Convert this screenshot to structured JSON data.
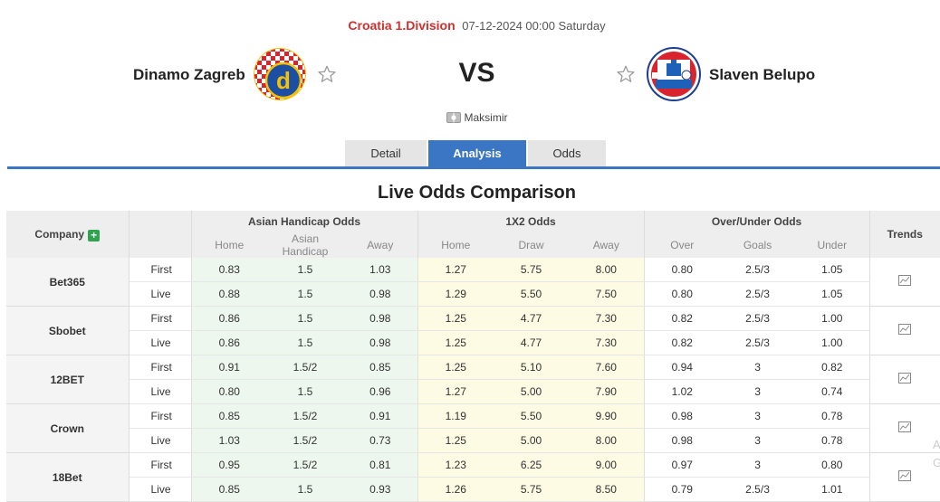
{
  "match": {
    "league": "Croatia 1.Division",
    "datetime": "07-12-2024 00:00 Saturday",
    "home_team": "Dinamo Zagreb",
    "away_team": "Slaven Belupo",
    "vs": "VS",
    "venue": "Maksimir"
  },
  "tabs": [
    {
      "label": "Detail",
      "active": false
    },
    {
      "label": "Analysis",
      "active": true
    },
    {
      "label": "Odds",
      "active": false
    }
  ],
  "section_title": "Live Odds Comparison",
  "table": {
    "headers": {
      "company": "Company",
      "asian": "Asian Handicap Odds",
      "x12": "1X2 Odds",
      "ou": "Over/Under Odds",
      "trends": "Trends"
    },
    "subheaders": {
      "asian": [
        "Home",
        "Asian Handicap",
        "Away"
      ],
      "x12": [
        "Home",
        "Draw",
        "Away"
      ],
      "ou": [
        "Over",
        "Goals",
        "Under"
      ]
    },
    "companies": [
      {
        "name": "Bet365",
        "rows": [
          {
            "type": "First",
            "ah": [
              "0.83",
              "1.5",
              "1.03"
            ],
            "x12": [
              "1.27",
              "5.75",
              "8.00"
            ],
            "ou": [
              "0.80",
              "2.5/3",
              "1.05"
            ]
          },
          {
            "type": "Live",
            "ah": [
              "0.88",
              "1.5",
              "0.98"
            ],
            "x12": [
              "1.29",
              "5.50",
              "7.50"
            ],
            "ou": [
              "0.80",
              "2.5/3",
              "1.05"
            ]
          }
        ]
      },
      {
        "name": "Sbobet",
        "rows": [
          {
            "type": "First",
            "ah": [
              "0.86",
              "1.5",
              "0.98"
            ],
            "x12": [
              "1.25",
              "4.77",
              "7.30"
            ],
            "ou": [
              "0.82",
              "2.5/3",
              "1.00"
            ]
          },
          {
            "type": "Live",
            "ah": [
              "0.86",
              "1.5",
              "0.98"
            ],
            "x12": [
              "1.25",
              "4.77",
              "7.30"
            ],
            "ou": [
              "0.82",
              "2.5/3",
              "1.00"
            ]
          }
        ]
      },
      {
        "name": "12BET",
        "rows": [
          {
            "type": "First",
            "ah": [
              "0.91",
              "1.5/2",
              "0.85"
            ],
            "x12": [
              "1.25",
              "5.10",
              "7.60"
            ],
            "ou": [
              "0.94",
              "3",
              "0.82"
            ]
          },
          {
            "type": "Live",
            "ah": [
              "0.80",
              "1.5",
              "0.96"
            ],
            "x12": [
              "1.27",
              "5.00",
              "7.90"
            ],
            "ou": [
              "1.02",
              "3",
              "0.74"
            ]
          }
        ]
      },
      {
        "name": "Crown",
        "rows": [
          {
            "type": "First",
            "ah": [
              "0.85",
              "1.5/2",
              "0.91"
            ],
            "x12": [
              "1.19",
              "5.50",
              "9.90"
            ],
            "ou": [
              "0.98",
              "3",
              "0.78"
            ]
          },
          {
            "type": "Live",
            "ah": [
              "1.03",
              "1.5/2",
              "0.73"
            ],
            "x12": [
              "1.25",
              "5.00",
              "8.00"
            ],
            "ou": [
              "0.98",
              "3",
              "0.78"
            ]
          }
        ]
      },
      {
        "name": "18Bet",
        "rows": [
          {
            "type": "First",
            "ah": [
              "0.95",
              "1.5/2",
              "0.81"
            ],
            "x12": [
              "1.23",
              "6.25",
              "9.00"
            ],
            "ou": [
              "0.97",
              "3",
              "0.80"
            ]
          },
          {
            "type": "Live",
            "ah": [
              "0.85",
              "1.5",
              "0.93"
            ],
            "x12": [
              "1.26",
              "5.75",
              "8.50"
            ],
            "ou": [
              "0.79",
              "2.5/3",
              "1.01"
            ]
          }
        ]
      }
    ]
  },
  "side_mark": [
    "A",
    "G"
  ],
  "icons": {
    "star": "star-outline-icon",
    "venue": "stadium-icon",
    "add": "plus-icon",
    "trend": "trend-chart-icon"
  },
  "colors": {
    "league_red": "#d0302d",
    "tab_blue": "#3a76c4",
    "asian_bg": "#eef7ee",
    "x12_bg": "#fdfbe3",
    "add_green": "#2ea44f"
  }
}
